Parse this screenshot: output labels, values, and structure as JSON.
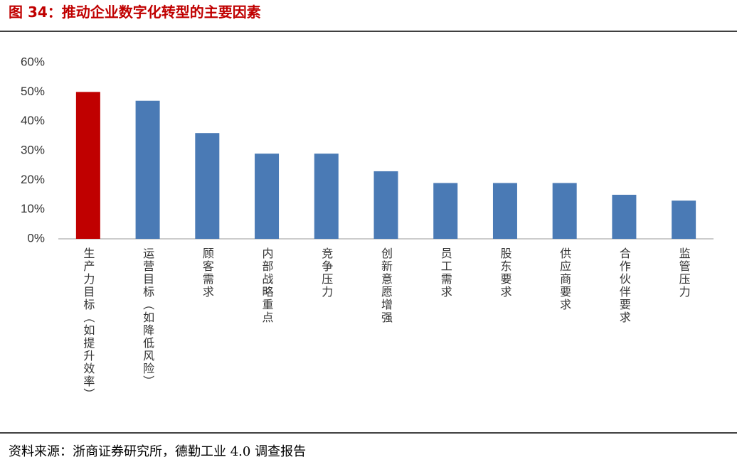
{
  "chart_data": {
    "type": "bar",
    "title": "图 34：推动企业数字化转型的主要因素",
    "categories": [
      "生产力目标（如提升效率）",
      "运营目标（如降低风险）",
      "顾客需求",
      "内部战略重点",
      "竞争压力",
      "创新意愿增强",
      "员工需求",
      "股东要求",
      "供应商要求",
      "合作伙伴要求",
      "监管压力"
    ],
    "values": [
      50,
      47,
      36,
      29,
      29,
      23,
      19,
      19,
      19,
      15,
      13
    ],
    "colors": [
      "#c00000",
      "#4a7ab5",
      "#4a7ab5",
      "#4a7ab5",
      "#4a7ab5",
      "#4a7ab5",
      "#4a7ab5",
      "#4a7ab5",
      "#4a7ab5",
      "#4a7ab5",
      "#4a7ab5"
    ],
    "ylim": [
      0,
      60
    ],
    "yticks": [
      {
        "value": 0,
        "label": "0%"
      },
      {
        "value": 10,
        "label": "10%"
      },
      {
        "value": 20,
        "label": "20%"
      },
      {
        "value": 30,
        "label": "30%"
      },
      {
        "value": 40,
        "label": "40%"
      },
      {
        "value": 50,
        "label": "50%"
      },
      {
        "value": 60,
        "label": "60%"
      }
    ],
    "grid": false,
    "source": "资料来源：浙商证券研究所，德勤工业 4.0 调查报告"
  }
}
